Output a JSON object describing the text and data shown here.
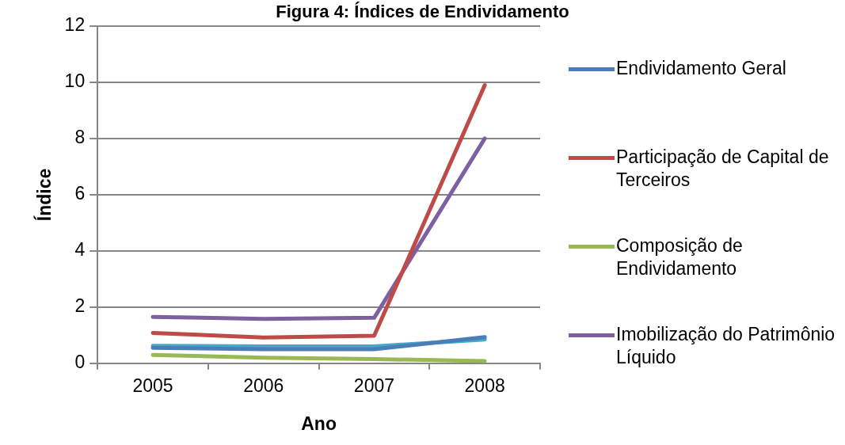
{
  "chart_data": {
    "type": "line",
    "title": "Figura 4: Índices de Endividamento",
    "xlabel": "Ano",
    "ylabel": "Índice",
    "categories": [
      "2005",
      "2006",
      "2007",
      "2008"
    ],
    "series": [
      {
        "name": "Endividamento Geral",
        "color": "#4a7ebb",
        "values": [
          0.55,
          0.5,
          0.5,
          0.93
        ]
      },
      {
        "name": "Participação de Capital de Terceiros",
        "color": "#be4b48",
        "values": [
          1.08,
          0.92,
          0.98,
          9.9
        ]
      },
      {
        "name": "Composição de Endividamento",
        "color": "#98b954",
        "values": [
          0.3,
          0.2,
          0.15,
          0.08
        ]
      },
      {
        "name": "Imobilização do Patrimônio Líquido",
        "color": "#7d60a0",
        "values": [
          1.65,
          1.58,
          1.62,
          8.0
        ]
      },
      {
        "color": "#46aac5",
        "values": [
          0.62,
          0.6,
          0.6,
          0.85
        ]
      }
    ],
    "ylim": [
      0,
      12
    ],
    "yticks": [
      0,
      2,
      4,
      6,
      8,
      10,
      12
    ],
    "grid": "y",
    "legend": "right",
    "marker": "none",
    "line_style": "solid"
  }
}
